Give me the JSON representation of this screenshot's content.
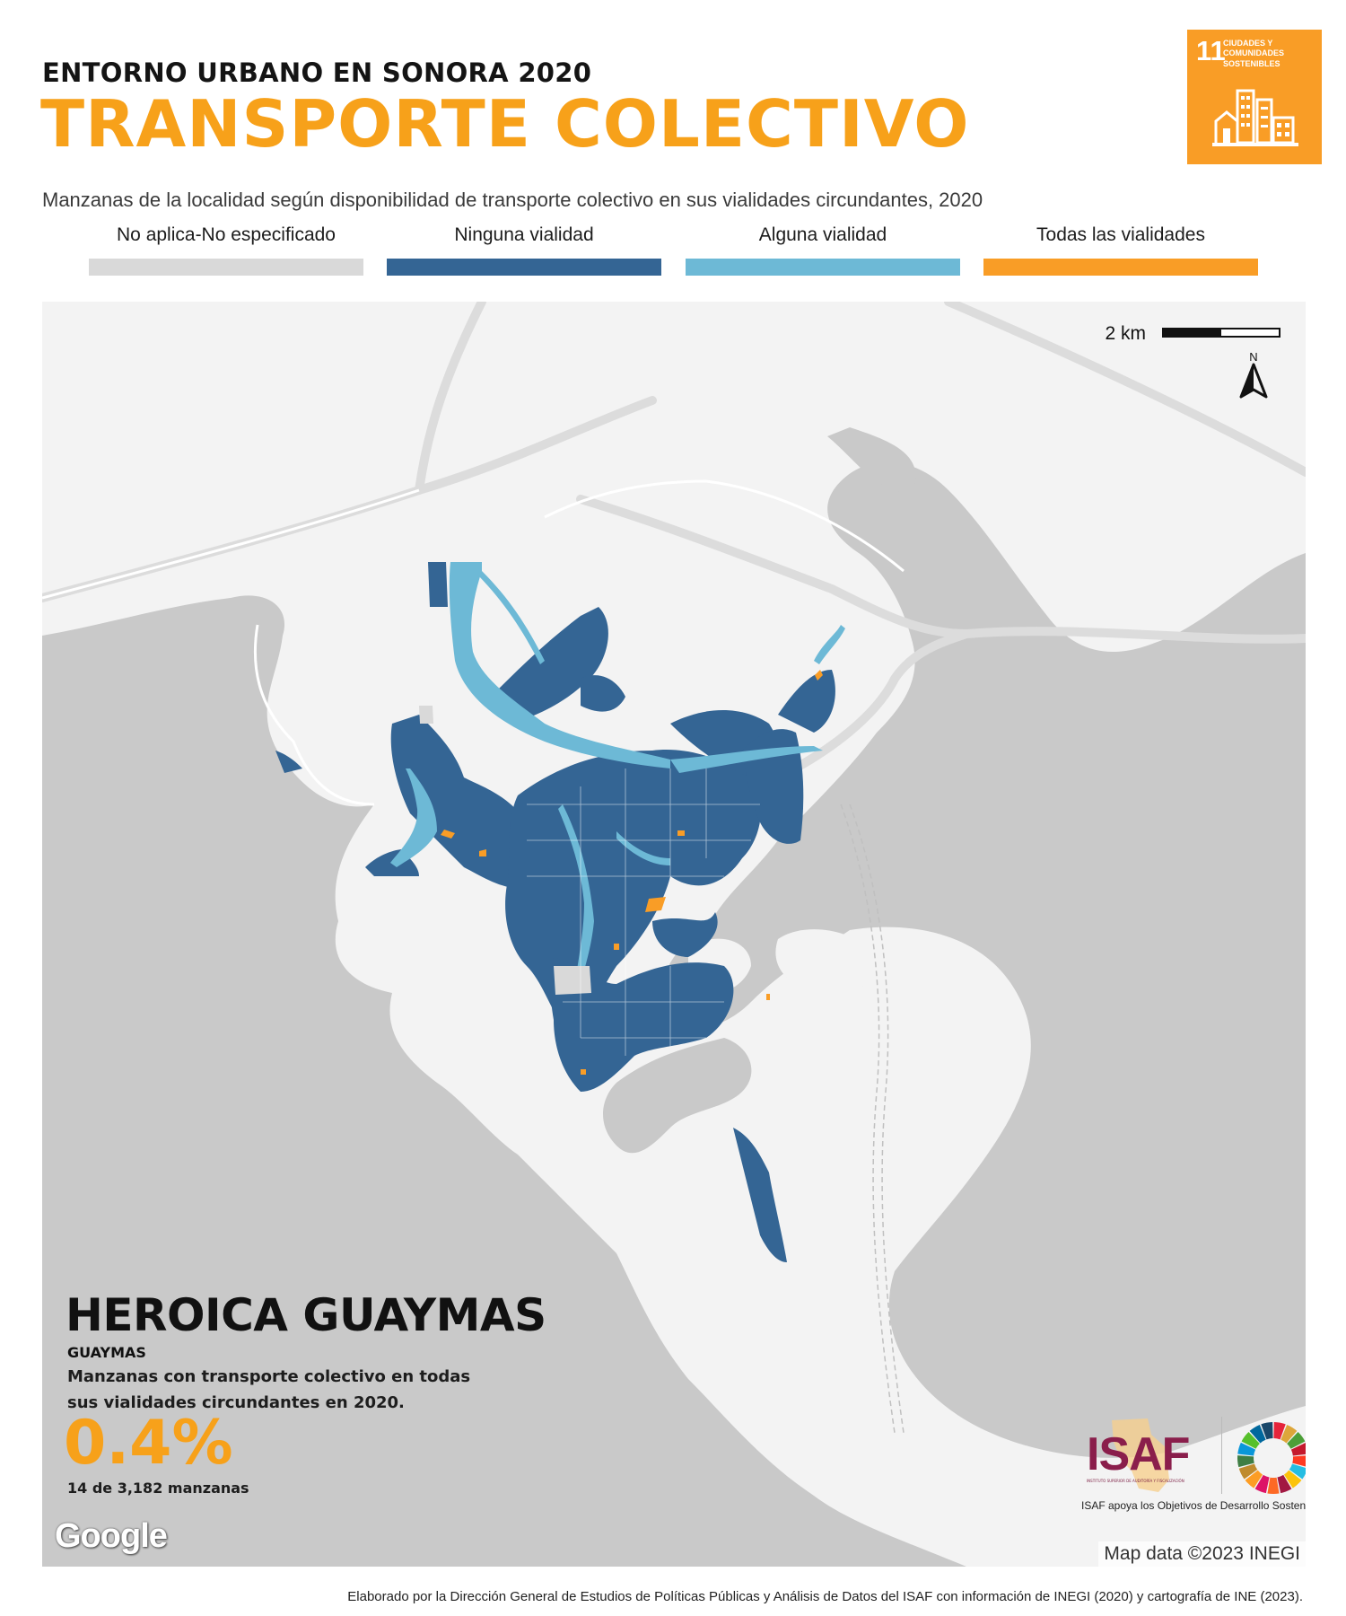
{
  "header": {
    "supertitle": "ENTORNO URBANO EN SONORA 2020",
    "title": "TRANSPORTE COLECTIVO",
    "subtitle": "Manzanas de la localidad según disponibilidad de  transporte colectivo en sus vialidades circundantes, 2020"
  },
  "sdg_badge": {
    "number": "11",
    "text": "CIUDADES Y COMUNIDADES SOSTENIBLES",
    "color": "#f99d26"
  },
  "legend": [
    {
      "label": "No aplica-No especificado",
      "color": "#d9d9d9"
    },
    {
      "label": "Ninguna vialidad",
      "color": "#346594"
    },
    {
      "label": "Alguna vialidad",
      "color": "#6db9d6"
    },
    {
      "label": "Todas las vialidades",
      "color": "#f99d26"
    }
  ],
  "map": {
    "scale_label": "2 km",
    "north_label": "N",
    "water_color": "#c9c9c9",
    "land_color": "#f3f3f3",
    "road_color": "#dcdcdc",
    "attribution": "Map data ©2023 INEGI",
    "provider": "Google"
  },
  "locality": {
    "name": "HEROICA GUAYMAS",
    "municipality": "GUAYMAS",
    "description": "Manzanas con transporte colectivo en todas sus vialidades circundantes en 2020.",
    "percent": "0.4%",
    "count_text": "14 de 3,182 manzanas"
  },
  "isaf": {
    "logo": "ISAF",
    "tagline": "INSTITUTO SUPERIOR DE AUDITORÍA Y FISCALIZACIÓN",
    "caption": "ISAF apoya los Objetivos de Desarrollo Sostenible"
  },
  "credits": "Elaborado por la Dirección General de Estudios de Políticas Públicas y Análisis de Datos del ISAF con información de INEGI (2020) y cartografía de INE (2023)."
}
